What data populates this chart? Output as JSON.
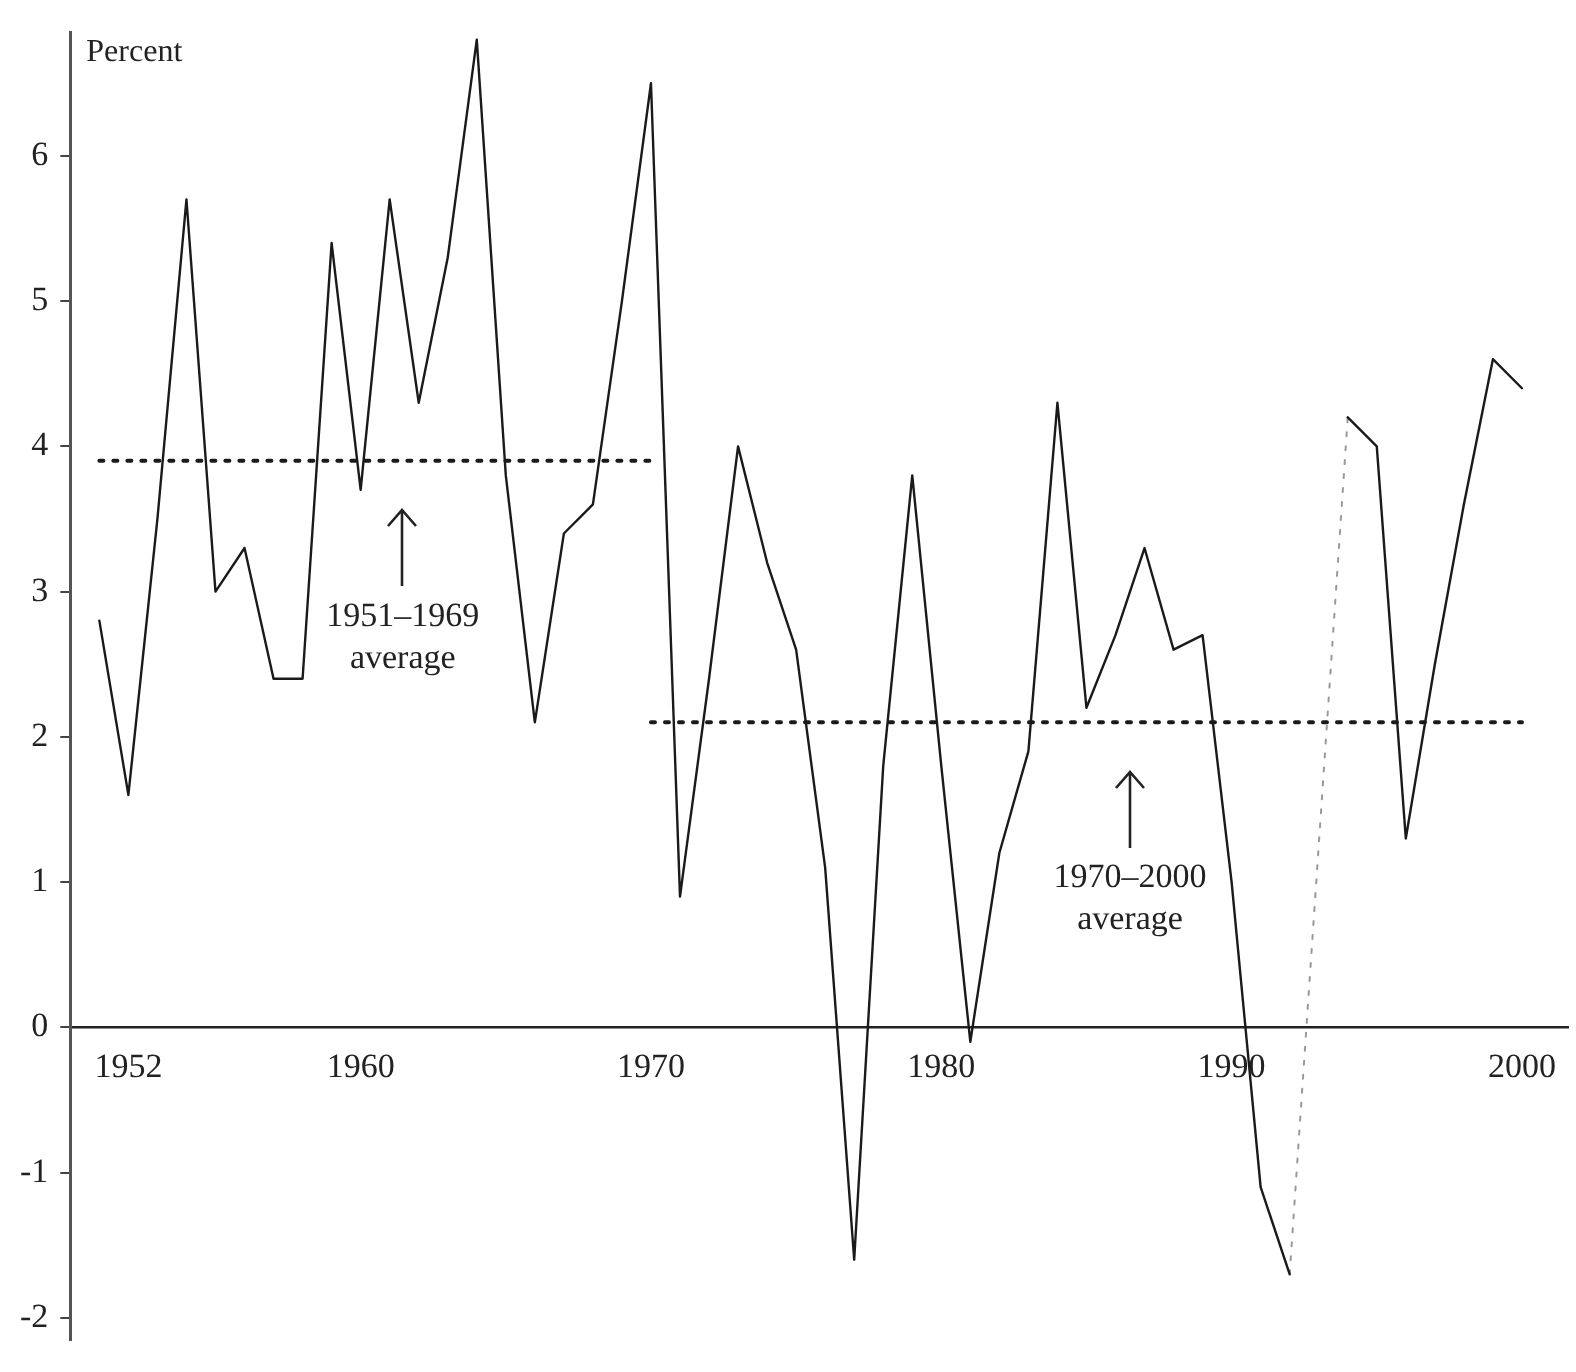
{
  "chart_data": {
    "type": "line",
    "ylabel": "Percent",
    "xlim": [
      1950,
      2001.6
    ],
    "xticks": [
      1952,
      1960,
      1970,
      1980,
      1990,
      2000
    ],
    "ylim": [
      -2.15,
      6.85
    ],
    "yticks": [
      -2,
      -1,
      0,
      1,
      2,
      3,
      4,
      5,
      6
    ],
    "grid": false,
    "legend": false,
    "marker": "none",
    "series": [
      {
        "color": "#1a1a1a",
        "line_style": "solid",
        "x": [
          1951,
          1952,
          1953,
          1954,
          1955,
          1956,
          1957,
          1958,
          1959,
          1960,
          1961,
          1962,
          1963,
          1964,
          1965,
          1966,
          1967,
          1968,
          1969,
          1970,
          1971,
          1972,
          1973,
          1974,
          1975,
          1976,
          1977,
          1978,
          1979,
          1980,
          1981,
          1982,
          1983,
          1984,
          1985,
          1986,
          1987,
          1988,
          1989,
          1990,
          1991,
          1992,
          1993,
          1994,
          1995,
          1996,
          1997,
          1998,
          1999,
          2000
        ],
        "values": [
          2.8,
          1.6,
          3.5,
          5.7,
          3.0,
          3.3,
          2.4,
          2.4,
          5.4,
          3.7,
          5.7,
          4.3,
          5.3,
          6.8,
          3.8,
          2.1,
          3.4,
          3.6,
          5.0,
          6.5,
          0.9,
          2.4,
          4.0,
          3.2,
          2.6,
          1.1,
          -1.6,
          1.8,
          3.8,
          1.8,
          -0.1,
          1.2,
          1.9,
          4.3,
          2.2,
          2.7,
          3.3,
          2.6,
          2.7,
          1.0,
          -1.1,
          -1.7,
          null,
          4.2,
          4.0,
          1.3,
          2.5,
          3.6,
          4.6,
          4.4
        ]
      },
      {
        "type": "line",
        "color": "#999999",
        "line_style": "dotted",
        "x": [
          1992,
          1994
        ],
        "values": [
          -1.7,
          4.2
        ]
      },
      {
        "type": "line",
        "color": "#1a1a1a",
        "line_style": "dotted",
        "x": [
          1951,
          1970
        ],
        "values": [
          3.9,
          3.9
        ]
      },
      {
        "type": "line",
        "color": "#1a1a1a",
        "line_style": "dotted",
        "x": [
          1970,
          2000
        ],
        "values": [
          2.1,
          2.1
        ]
      }
    ],
    "annotations": [
      "1951–1969 average",
      "1970–2000 average"
    ]
  }
}
